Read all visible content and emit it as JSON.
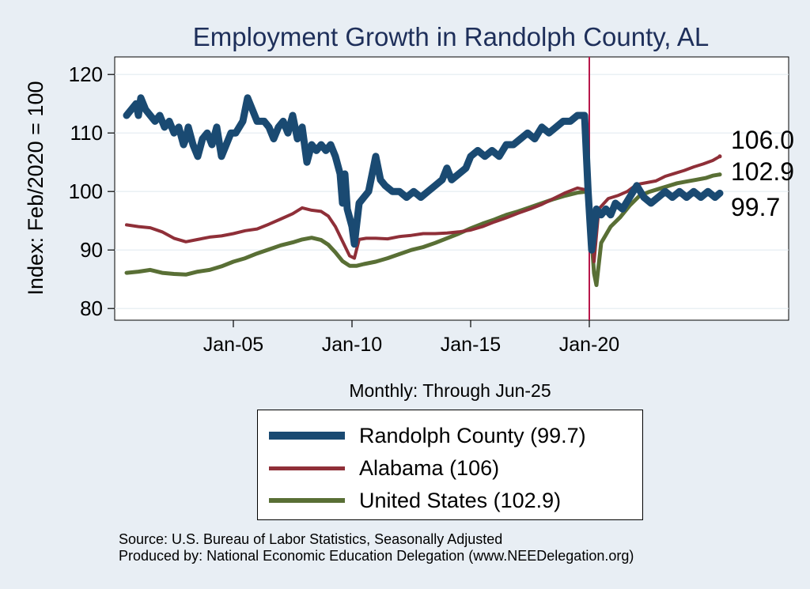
{
  "chart_data": {
    "type": "line",
    "title": "Employment Growth in Randolph  County, AL",
    "ylabel": "Index: Feb/2020 = 100",
    "xlabel": "Monthly: Through Jun-25",
    "ylim": [
      78,
      123
    ],
    "yticks": [
      80,
      90,
      100,
      110,
      120
    ],
    "xlim": [
      2000.0,
      2028.4
    ],
    "xticks": [
      {
        "label": "Jan-05",
        "value": 2005.0
      },
      {
        "label": "Jan-10",
        "value": 2010.0
      },
      {
        "label": "Jan-15",
        "value": 2015.0
      },
      {
        "label": "Jan-20",
        "value": 2020.0
      }
    ],
    "reference_line": {
      "x": 2020.0,
      "color": "#b8174a"
    },
    "grid": true,
    "series": [
      {
        "name": "Randolph  County",
        "legend_label": "Randolph  County (99.7)",
        "color": "#1a4a72",
        "width": 9,
        "end_label": "99.7",
        "points": [
          [
            2000.5,
            113
          ],
          [
            2000.7,
            114
          ],
          [
            2000.9,
            115
          ],
          [
            2001.0,
            113
          ],
          [
            2001.1,
            116
          ],
          [
            2001.3,
            114
          ],
          [
            2001.5,
            113
          ],
          [
            2001.7,
            112
          ],
          [
            2001.9,
            113
          ],
          [
            2002.1,
            111
          ],
          [
            2002.3,
            112
          ],
          [
            2002.5,
            110
          ],
          [
            2002.7,
            111
          ],
          [
            2002.9,
            108
          ],
          [
            2003.0,
            109
          ],
          [
            2003.1,
            111
          ],
          [
            2003.3,
            108
          ],
          [
            2003.5,
            106
          ],
          [
            2003.7,
            109
          ],
          [
            2003.9,
            110
          ],
          [
            2004.1,
            108
          ],
          [
            2004.3,
            111
          ],
          [
            2004.5,
            106
          ],
          [
            2004.7,
            108
          ],
          [
            2004.9,
            110
          ],
          [
            2005.1,
            110
          ],
          [
            2005.4,
            112
          ],
          [
            2005.6,
            116
          ],
          [
            2005.8,
            114
          ],
          [
            2006.0,
            112
          ],
          [
            2006.3,
            112
          ],
          [
            2006.5,
            111
          ],
          [
            2006.7,
            109
          ],
          [
            2006.9,
            111
          ],
          [
            2007.1,
            112
          ],
          [
            2007.3,
            110
          ],
          [
            2007.5,
            113
          ],
          [
            2007.7,
            109
          ],
          [
            2007.9,
            111
          ],
          [
            2008.1,
            105
          ],
          [
            2008.3,
            108
          ],
          [
            2008.5,
            107
          ],
          [
            2008.7,
            108
          ],
          [
            2008.9,
            107
          ],
          [
            2009.1,
            108
          ],
          [
            2009.3,
            106
          ],
          [
            2009.5,
            103
          ],
          [
            2009.6,
            98
          ],
          [
            2009.7,
            103
          ],
          [
            2009.8,
            97
          ],
          [
            2010.0,
            94
          ],
          [
            2010.1,
            91
          ],
          [
            2010.3,
            98
          ],
          [
            2010.5,
            99
          ],
          [
            2010.7,
            100
          ],
          [
            2010.9,
            104
          ],
          [
            2011.0,
            106
          ],
          [
            2011.2,
            102
          ],
          [
            2011.4,
            101
          ],
          [
            2011.7,
            100
          ],
          [
            2012.0,
            100
          ],
          [
            2012.3,
            99
          ],
          [
            2012.6,
            100
          ],
          [
            2012.9,
            99
          ],
          [
            2013.2,
            100
          ],
          [
            2013.5,
            101
          ],
          [
            2013.8,
            102
          ],
          [
            2014.0,
            104
          ],
          [
            2014.2,
            102
          ],
          [
            2014.5,
            103
          ],
          [
            2014.8,
            104
          ],
          [
            2015.0,
            106
          ],
          [
            2015.3,
            107
          ],
          [
            2015.6,
            106
          ],
          [
            2015.9,
            107
          ],
          [
            2016.2,
            106
          ],
          [
            2016.5,
            108
          ],
          [
            2016.8,
            108
          ],
          [
            2017.1,
            109
          ],
          [
            2017.4,
            110
          ],
          [
            2017.7,
            109
          ],
          [
            2018.0,
            111
          ],
          [
            2018.3,
            110
          ],
          [
            2018.6,
            111
          ],
          [
            2018.9,
            112
          ],
          [
            2019.2,
            112
          ],
          [
            2019.5,
            113
          ],
          [
            2019.8,
            113
          ],
          [
            2019.95,
            100
          ],
          [
            2020.1,
            90
          ],
          [
            2020.3,
            97
          ],
          [
            2020.5,
            96
          ],
          [
            2020.7,
            97
          ],
          [
            2020.9,
            96
          ],
          [
            2021.1,
            98
          ],
          [
            2021.4,
            97
          ],
          [
            2021.7,
            99
          ],
          [
            2022.0,
            101
          ],
          [
            2022.3,
            99
          ],
          [
            2022.6,
            98
          ],
          [
            2022.9,
            99
          ],
          [
            2023.2,
            100
          ],
          [
            2023.5,
            99
          ],
          [
            2023.8,
            100
          ],
          [
            2024.1,
            99
          ],
          [
            2024.4,
            100
          ],
          [
            2024.7,
            99
          ],
          [
            2025.0,
            100
          ],
          [
            2025.3,
            99
          ],
          [
            2025.5,
            99.7
          ]
        ]
      },
      {
        "name": "Alabama",
        "legend_label": "Alabama (106)",
        "color": "#8f2f38",
        "width": 4,
        "end_label": "106.0",
        "points": [
          [
            2000.5,
            94.3
          ],
          [
            2001.0,
            94.0
          ],
          [
            2001.5,
            93.8
          ],
          [
            2002.0,
            93.1
          ],
          [
            2002.5,
            92.0
          ],
          [
            2003.0,
            91.4
          ],
          [
            2003.5,
            91.8
          ],
          [
            2004.0,
            92.2
          ],
          [
            2004.5,
            92.4
          ],
          [
            2005.0,
            92.8
          ],
          [
            2005.5,
            93.3
          ],
          [
            2006.0,
            93.6
          ],
          [
            2006.5,
            94.4
          ],
          [
            2007.0,
            95.3
          ],
          [
            2007.5,
            96.2
          ],
          [
            2007.9,
            97.2
          ],
          [
            2008.3,
            96.8
          ],
          [
            2008.7,
            96.6
          ],
          [
            2009.0,
            95.8
          ],
          [
            2009.3,
            94.0
          ],
          [
            2009.6,
            91.5
          ],
          [
            2009.9,
            89.0
          ],
          [
            2010.1,
            88.6
          ],
          [
            2010.3,
            91.8
          ],
          [
            2010.6,
            92.0
          ],
          [
            2011.0,
            92.0
          ],
          [
            2011.5,
            91.9
          ],
          [
            2012.0,
            92.3
          ],
          [
            2012.5,
            92.5
          ],
          [
            2013.0,
            92.8
          ],
          [
            2013.5,
            92.8
          ],
          [
            2014.0,
            92.9
          ],
          [
            2014.5,
            93.1
          ],
          [
            2015.0,
            93.4
          ],
          [
            2015.5,
            94.0
          ],
          [
            2016.0,
            94.8
          ],
          [
            2016.5,
            95.5
          ],
          [
            2017.0,
            96.3
          ],
          [
            2017.5,
            97.0
          ],
          [
            2018.0,
            97.8
          ],
          [
            2018.5,
            98.8
          ],
          [
            2019.0,
            99.8
          ],
          [
            2019.5,
            100.6
          ],
          [
            2019.95,
            100.2
          ],
          [
            2020.2,
            88.0
          ],
          [
            2020.4,
            97.0
          ],
          [
            2020.8,
            98.8
          ],
          [
            2021.2,
            99.3
          ],
          [
            2021.6,
            100.0
          ],
          [
            2022.0,
            101.2
          ],
          [
            2022.4,
            101.5
          ],
          [
            2022.8,
            101.8
          ],
          [
            2023.2,
            102.6
          ],
          [
            2023.6,
            103.1
          ],
          [
            2024.0,
            103.6
          ],
          [
            2024.4,
            104.2
          ],
          [
            2024.8,
            104.7
          ],
          [
            2025.2,
            105.3
          ],
          [
            2025.5,
            106.0
          ]
        ]
      },
      {
        "name": "United States",
        "legend_label": "United States (102.9)",
        "color": "#596f35",
        "width": 5,
        "end_label": "102.9",
        "points": [
          [
            2000.5,
            86.1
          ],
          [
            2001.0,
            86.3
          ],
          [
            2001.5,
            86.6
          ],
          [
            2002.0,
            86.1
          ],
          [
            2002.5,
            85.9
          ],
          [
            2003.0,
            85.8
          ],
          [
            2003.5,
            86.3
          ],
          [
            2004.0,
            86.6
          ],
          [
            2004.5,
            87.2
          ],
          [
            2005.0,
            88.0
          ],
          [
            2005.5,
            88.6
          ],
          [
            2006.0,
            89.4
          ],
          [
            2006.5,
            90.1
          ],
          [
            2007.0,
            90.8
          ],
          [
            2007.5,
            91.3
          ],
          [
            2007.9,
            91.8
          ],
          [
            2008.3,
            92.1
          ],
          [
            2008.7,
            91.7
          ],
          [
            2009.0,
            90.9
          ],
          [
            2009.3,
            89.6
          ],
          [
            2009.6,
            88.1
          ],
          [
            2009.9,
            87.3
          ],
          [
            2010.2,
            87.3
          ],
          [
            2010.5,
            87.6
          ],
          [
            2011.0,
            88.0
          ],
          [
            2011.5,
            88.6
          ],
          [
            2012.0,
            89.3
          ],
          [
            2012.5,
            90.0
          ],
          [
            2013.0,
            90.5
          ],
          [
            2013.5,
            91.2
          ],
          [
            2014.0,
            92.0
          ],
          [
            2014.5,
            92.8
          ],
          [
            2015.0,
            93.7
          ],
          [
            2015.5,
            94.5
          ],
          [
            2016.0,
            95.2
          ],
          [
            2016.5,
            96.0
          ],
          [
            2017.0,
            96.6
          ],
          [
            2017.5,
            97.3
          ],
          [
            2018.0,
            98.0
          ],
          [
            2018.5,
            98.7
          ],
          [
            2019.0,
            99.3
          ],
          [
            2019.5,
            99.8
          ],
          [
            2019.95,
            100.0
          ],
          [
            2020.2,
            86.0
          ],
          [
            2020.3,
            84.0
          ],
          [
            2020.5,
            91.2
          ],
          [
            2020.9,
            94.0
          ],
          [
            2021.3,
            95.6
          ],
          [
            2021.7,
            97.6
          ],
          [
            2022.1,
            99.2
          ],
          [
            2022.5,
            99.9
          ],
          [
            2022.9,
            100.4
          ],
          [
            2023.3,
            100.9
          ],
          [
            2023.7,
            101.4
          ],
          [
            2024.1,
            101.7
          ],
          [
            2024.5,
            102.0
          ],
          [
            2024.9,
            102.3
          ],
          [
            2025.2,
            102.7
          ],
          [
            2025.5,
            102.9
          ]
        ]
      }
    ]
  },
  "source_lines": [
    "Source: U.S. Bureau of Labor Statistics, Seasonally Adjusted",
    "Produced by: National Economic Education Delegation (www.NEEDelegation.org)"
  ]
}
